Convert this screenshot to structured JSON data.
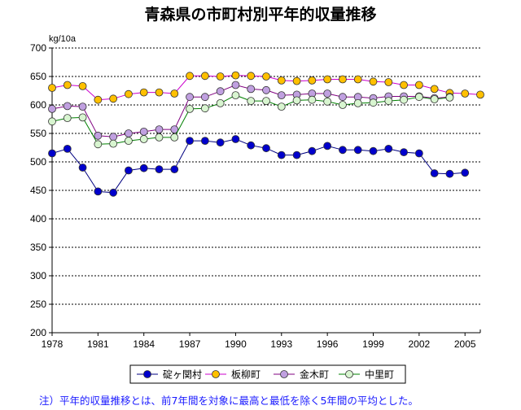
{
  "chart_data": {
    "type": "line",
    "title": "青森県の市町村別平年的収量推移",
    "ylabel": "kg/10a",
    "xlabel": "",
    "ylim": [
      200,
      700
    ],
    "yticks": [
      200,
      250,
      300,
      350,
      400,
      450,
      500,
      550,
      600,
      650,
      700
    ],
    "xlim": [
      1978,
      2006
    ],
    "xticks": [
      1978,
      1981,
      1984,
      1987,
      1990,
      1993,
      1996,
      1999,
      2002,
      2005
    ],
    "grid": "horizontal-dashed",
    "legend_position": "bottom",
    "x": [
      1978,
      1979,
      1980,
      1981,
      1982,
      1983,
      1984,
      1985,
      1986,
      1987,
      1988,
      1989,
      1990,
      1991,
      1992,
      1993,
      1994,
      1995,
      1996,
      1997,
      1998,
      1999,
      2000,
      2001,
      2002,
      2003,
      2004,
      2005,
      2006
    ],
    "series": [
      {
        "name": "碇ヶ関村",
        "color": "#0000cc",
        "line_color": "#000080",
        "values": [
          515,
          523,
          490,
          448,
          446,
          485,
          489,
          487,
          487,
          537,
          537,
          534,
          540,
          529,
          524,
          512,
          512,
          519,
          528,
          521,
          521,
          519,
          523,
          517,
          515,
          480,
          479,
          481,
          null
        ]
      },
      {
        "name": "板柳町",
        "color": "#ffc000",
        "line_color": "#cc00cc",
        "values": [
          630,
          635,
          633,
          609,
          611,
          619,
          622,
          622,
          620,
          651,
          651,
          650,
          652,
          651,
          650,
          643,
          642,
          643,
          645,
          645,
          645,
          641,
          640,
          635,
          635,
          628,
          621,
          620,
          618
        ]
      },
      {
        "name": "金木町",
        "color": "#c0a0e0",
        "line_color": "#800080",
        "values": [
          593,
          598,
          597,
          546,
          544,
          550,
          553,
          557,
          557,
          614,
          614,
          624,
          635,
          628,
          626,
          617,
          618,
          620,
          620,
          614,
          614,
          612,
          615,
          615,
          615,
          612,
          614,
          null,
          null
        ]
      },
      {
        "name": "中里町",
        "color": "#d8f5d0",
        "line_color": "#008000",
        "values": [
          571,
          577,
          578,
          531,
          532,
          537,
          540,
          543,
          543,
          593,
          594,
          603,
          617,
          607,
          607,
          597,
          608,
          609,
          606,
          600,
          603,
          604,
          607,
          609,
          614,
          610,
          613,
          null,
          null
        ]
      }
    ],
    "note": "注）平年的収量推移とは、前7年間を対象に最高と最低を除く5年間の平均とした。"
  }
}
